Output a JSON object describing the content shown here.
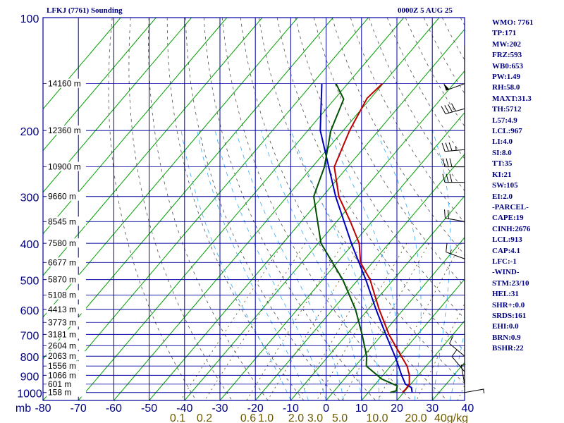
{
  "header": {
    "station": "LFKJ (7761) Sounding",
    "time": "0000Z  5 AUG 25"
  },
  "indices": [
    "WMO: 7761",
    "TP:171",
    "MW:202",
    "FRZ:593",
    "WB0:653",
    "PW:1.49",
    "RH:58.0",
    "MAXT:31.3",
    "TH:5712",
    "L57:4.9",
    "LCL:967",
    "LI:4.0",
    "SI:8.0",
    "TT:35",
    "KI:21",
    "SW:105",
    "EI:2.0",
    "-PARCEL-",
    "CAPE:19",
    "CINH:2676",
    "LCL:913",
    "CAP:4.1",
    "LFC:-1",
    "-WIND-",
    "STM:23/10",
    "HEL:31",
    "SHR+:0.0",
    "SRDS:161",
    "EHI:0.0",
    "BRN:0.9",
    "BSHR:22"
  ],
  "colors": {
    "temperature": "#c00000",
    "dewpoint": "#005000",
    "parcel": "#0000c0",
    "grid": "#0000a0",
    "isotherm": "#00a000",
    "dry_adiabat": "#505050",
    "moist_adiabat": "#33aaff",
    "mixing_ratio": "#5a4a00",
    "text": "#000080"
  },
  "chart_data": {
    "type": "skew-t",
    "pressure_ticks": [
      100,
      200,
      300,
      400,
      500,
      600,
      700,
      800,
      900,
      1000
    ],
    "pressure_unit": "mb",
    "temperature_ticks": [
      -80,
      -70,
      -60,
      -50,
      -40,
      -30,
      -20,
      -10,
      0,
      10,
      20,
      30,
      40
    ],
    "mixing_ratio_ticks": [
      "0.1",
      "0.2",
      "0.6",
      "1.0",
      "2.0",
      "3.0",
      "5.0",
      "10.0",
      "20.0",
      "40g/kg"
    ],
    "height_labels": [
      {
        "p": 150,
        "text": "14160 m"
      },
      {
        "p": 200,
        "text": "12360 m"
      },
      {
        "p": 250,
        "text": "10900 m"
      },
      {
        "p": 300,
        "text": "9660 m"
      },
      {
        "p": 350,
        "text": "8545 m"
      },
      {
        "p": 400,
        "text": "7580 m"
      },
      {
        "p": 450,
        "text": "6677 m"
      },
      {
        "p": 500,
        "text": "5870 m"
      },
      {
        "p": 550,
        "text": "5108 m"
      },
      {
        "p": 600,
        "text": "4413 m"
      },
      {
        "p": 650,
        "text": "3773 m"
      },
      {
        "p": 700,
        "text": "3181 m"
      },
      {
        "p": 750,
        "text": "2604 m"
      },
      {
        "p": 800,
        "text": "2063 m"
      },
      {
        "p": 850,
        "text": "1556 m"
      },
      {
        "p": 900,
        "text": "1066 m"
      },
      {
        "p": 950,
        "text": "601 m"
      },
      {
        "p": 1000,
        "text": "158 m"
      }
    ],
    "temperature_profile": [
      {
        "p": 1000,
        "t": 19.6
      },
      {
        "p": 980,
        "t": 19.8
      },
      {
        "p": 950,
        "t": 19.6
      },
      {
        "p": 900,
        "t": 17.5
      },
      {
        "p": 850,
        "t": 14.6
      },
      {
        "p": 800,
        "t": 10.6
      },
      {
        "p": 700,
        "t": 1.9
      },
      {
        "p": 600,
        "t": -6.9
      },
      {
        "p": 500,
        "t": -16.6
      },
      {
        "p": 450,
        "t": -23.4
      },
      {
        "p": 400,
        "t": -28.4
      },
      {
        "p": 350,
        "t": -36.1
      },
      {
        "p": 300,
        "t": -45.4
      },
      {
        "p": 250,
        "t": -53.8
      },
      {
        "p": 200,
        "t": -58.2
      },
      {
        "p": 164,
        "t": -61.0
      },
      {
        "p": 150,
        "t": -60.2
      }
    ],
    "dewpoint_profile": [
      {
        "p": 1000,
        "t": 16.2
      },
      {
        "p": 990,
        "t": 17.5
      },
      {
        "p": 960,
        "t": 16.6
      },
      {
        "p": 920,
        "t": 10.5
      },
      {
        "p": 850,
        "t": 3.1
      },
      {
        "p": 800,
        "t": 0.8
      },
      {
        "p": 700,
        "t": -5.7
      },
      {
        "p": 600,
        "t": -13.6
      },
      {
        "p": 500,
        "t": -24.3
      },
      {
        "p": 400,
        "t": -39.2
      },
      {
        "p": 300,
        "t": -52.5
      },
      {
        "p": 250,
        "t": -56.6
      },
      {
        "p": 200,
        "t": -63.5
      },
      {
        "p": 165,
        "t": -67.4
      },
      {
        "p": 150,
        "t": -73.3
      }
    ],
    "parcel_profile": [
      {
        "p": 1000,
        "t": 22.4
      },
      {
        "p": 970,
        "t": 21.0
      },
      {
        "p": 950,
        "t": 18.5
      },
      {
        "p": 900,
        "t": 15.3
      },
      {
        "p": 850,
        "t": 12.2
      },
      {
        "p": 800,
        "t": 8.8
      },
      {
        "p": 700,
        "t": 1.0
      },
      {
        "p": 600,
        "t": -7.8
      },
      {
        "p": 500,
        "t": -17.8
      },
      {
        "p": 400,
        "t": -30.6
      },
      {
        "p": 300,
        "t": -46.3
      },
      {
        "p": 200,
        "t": -66.5
      },
      {
        "p": 150,
        "t": -77.3
      }
    ],
    "wind_barbs": [
      {
        "p": 150,
        "dir": 250,
        "spd": 50
      },
      {
        "p": 175,
        "dir": 255,
        "spd": 40
      },
      {
        "p": 225,
        "dir": 265,
        "spd": 35
      },
      {
        "p": 250,
        "dir": 270,
        "spd": 30
      },
      {
        "p": 275,
        "dir": 270,
        "spd": 30
      },
      {
        "p": 350,
        "dir": 280,
        "spd": 20
      },
      {
        "p": 440,
        "dir": 290,
        "spd": 15
      },
      {
        "p": 800,
        "dir": 310,
        "spd": 10
      },
      {
        "p": 880,
        "dir": 320,
        "spd": 10
      },
      {
        "p": 950,
        "dir": 350,
        "spd": 5
      },
      {
        "p": 1000,
        "dir": 80,
        "spd": 5
      }
    ]
  }
}
